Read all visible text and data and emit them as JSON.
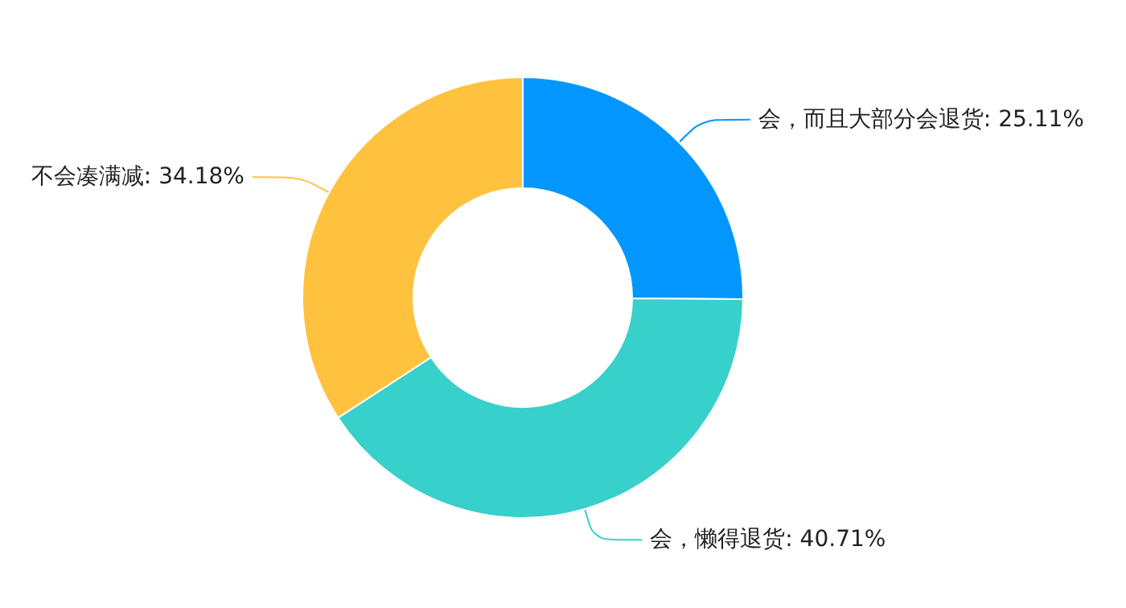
{
  "chart_data": {
    "type": "donut",
    "categories": [
      "会，而且大部分会退货",
      "会，懒得退货",
      "不会凑满减"
    ],
    "values": [
      25.11,
      40.71,
      34.18
    ],
    "colors": [
      "#0397fe",
      "#38d0cb",
      "#ffc23f"
    ],
    "value_labels": [
      "25.11%",
      "40.71%",
      "34.18%"
    ],
    "legend": false
  }
}
